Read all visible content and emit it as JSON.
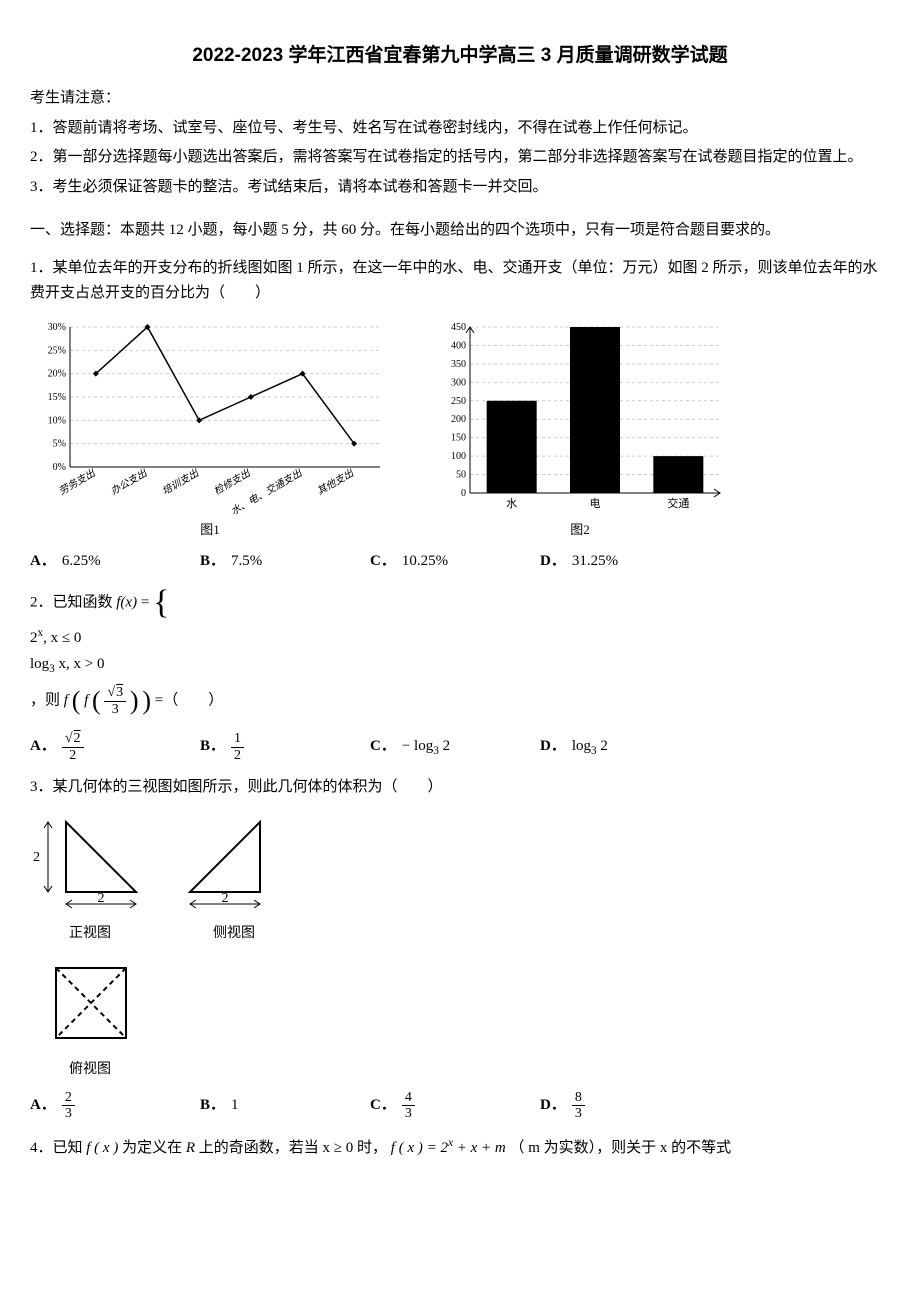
{
  "title": "2022-2023 学年江西省宜春第九中学高三 3 月质量调研数学试题",
  "notice_heading": "考生请注意：",
  "notices": [
    "1．答题前请将考场、试室号、座位号、考生号、姓名写在试卷密封线内，不得在试卷上作任何标记。",
    "2．第一部分选择题每小题选出答案后，需将答案写在试卷指定的括号内，第二部分非选择题答案写在试卷题目指定的位置上。",
    "3．考生必须保证答题卡的整洁。考试结束后，请将本试卷和答题卡一并交回。"
  ],
  "section1_head": "一、选择题：本题共 12 小题，每小题 5 分，共 60 分。在每小题给出的四个选项中，只有一项是符合题目要求的。",
  "q1": {
    "text": "1．某单位去年的开支分布的折线图如图 1 所示，在这一年中的水、电、交通开支（单位：万元）如图 2 所示，则该单位去年的水费开支占总开支的百分比为（　　）",
    "line_chart": {
      "y_ticks": [
        "0%",
        "5%",
        "10%",
        "15%",
        "20%",
        "25%",
        "30%"
      ],
      "y_values_pct": [
        0,
        5,
        10,
        15,
        20,
        25,
        30
      ],
      "categories": [
        "劳务支出",
        "办公支出",
        "培训支出",
        "检修支出",
        "水、电、交通支出",
        "其他支出"
      ],
      "values_pct": [
        20,
        30,
        10,
        15,
        20,
        5
      ],
      "caption": "图1",
      "axis_color": "#000000",
      "grid_color": "#cccccc",
      "line_color": "#000000",
      "marker_color": "#000000",
      "font_size": 10
    },
    "bar_chart": {
      "y_max": 450,
      "y_step": 50,
      "categories": [
        "水",
        "电",
        "交通"
      ],
      "values": [
        250,
        450,
        100
      ],
      "caption": "图2",
      "axis_color": "#000000",
      "grid_color": "#cccccc",
      "bar_color": "#000000",
      "font_size": 10,
      "bar_width_ratio": 0.6
    },
    "options": {
      "A": "6.25%",
      "B": "7.5%",
      "C": "10.25%",
      "D": "31.25%"
    }
  },
  "q2": {
    "stem_prefix": "2．已知函数 ",
    "fx": "f(x)",
    "eq": " = ",
    "case1": "2",
    "case1_sup": "x",
    "case1_cond": ", x ≤ 0",
    "case2": "log",
    "case2_sub": "3",
    "case2_rest": " x, x > 0",
    "mid": "，则 ",
    "outer_f": "f",
    "inner_f": "f",
    "arg_num_sqrt": "3",
    "arg_den": "3",
    "tail": " =（　　）",
    "options": {
      "A_num_sqrt": "2",
      "A_den": "2",
      "B_num": "1",
      "B_den": "2",
      "C": "− log",
      "C_sub": "3",
      "C_rest": " 2",
      "D": "log",
      "D_sub": "3",
      "D_rest": " 2"
    }
  },
  "q3": {
    "text": "3．某几何体的三视图如图所示，则此几何体的体积为（　　）",
    "views": {
      "dim": "2",
      "front_label": "正视图",
      "side_label": "侧视图",
      "top_label": "俯视图",
      "line_color": "#000000",
      "line_width": 2
    },
    "options": {
      "A_num": "2",
      "A_den": "3",
      "B": "1",
      "C_num": "4",
      "C_den": "3",
      "D_num": "8",
      "D_den": "3"
    }
  },
  "q4": {
    "prefix": "4．已知 ",
    "fx": "f ( x )",
    "mid1": " 为定义在 ",
    "R": "R",
    "mid2": " 上的奇函数，若当 ",
    "cond": "x ≥ 0",
    "mid3": " 时，",
    "fx2": "f ( x ) = 2",
    "sup": "x",
    "rest": " + x + m",
    "paren": "（ m 为实数），则关于 x 的不等式"
  },
  "labels": {
    "A": "A．",
    "B": "B．",
    "C": "C．",
    "D": "D．"
  },
  "colors": {
    "text": "#000000",
    "bg": "#ffffff"
  }
}
